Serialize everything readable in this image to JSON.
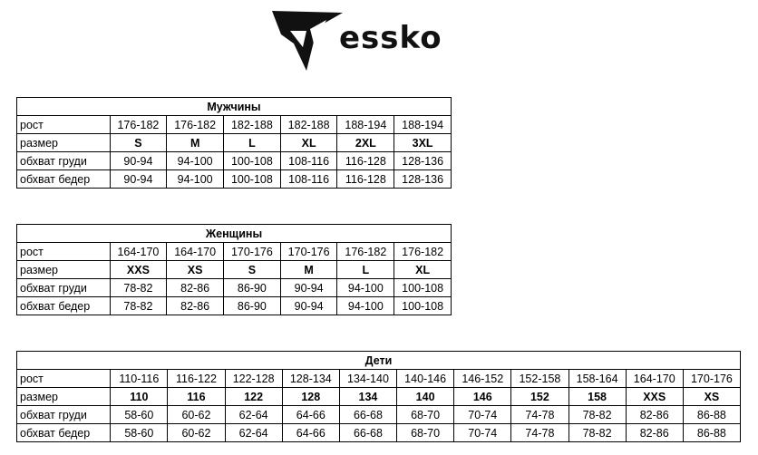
{
  "logo": {
    "brand": "essko",
    "icon": "essko-shield-logo-icon"
  },
  "men": {
    "title": "Мужчины",
    "rows": [
      {
        "label": "рост",
        "values": [
          "176-182",
          "176-182",
          "182-188",
          "182-188",
          "188-194",
          "188-194"
        ]
      },
      {
        "label": "размер",
        "values": [
          "S",
          "M",
          "L",
          "XL",
          "2XL",
          "3XL"
        ]
      },
      {
        "label": "обхват груди",
        "values": [
          "90-94",
          "94-100",
          "100-108",
          "108-116",
          "116-128",
          "128-136"
        ]
      },
      {
        "label": "обхват бедер",
        "values": [
          "90-94",
          "94-100",
          "100-108",
          "108-116",
          "116-128",
          "128-136"
        ]
      }
    ]
  },
  "women": {
    "title": "Женщины",
    "rows": [
      {
        "label": "рост",
        "values": [
          "164-170",
          "164-170",
          "170-176",
          "170-176",
          "176-182",
          "176-182"
        ]
      },
      {
        "label": "размер",
        "values": [
          "XXS",
          "XS",
          "S",
          "M",
          "L",
          "XL"
        ]
      },
      {
        "label": "обхват груди",
        "values": [
          "78-82",
          "82-86",
          "86-90",
          "90-94",
          "94-100",
          "100-108"
        ]
      },
      {
        "label": "обхват бедер",
        "values": [
          "78-82",
          "82-86",
          "86-90",
          "90-94",
          "94-100",
          "100-108"
        ]
      }
    ]
  },
  "kids": {
    "title": "Дети",
    "rows": [
      {
        "label": "рост",
        "values": [
          "110-116",
          "116-122",
          "122-128",
          "128-134",
          "134-140",
          "140-146",
          "146-152",
          "152-158",
          "158-164",
          "164-170",
          "170-176"
        ]
      },
      {
        "label": "размер",
        "values": [
          "110",
          "116",
          "122",
          "128",
          "134",
          "140",
          "146",
          "152",
          "158",
          "XXS",
          "XS"
        ]
      },
      {
        "label": "обхват груди",
        "values": [
          "58-60",
          "60-62",
          "62-64",
          "64-66",
          "66-68",
          "68-70",
          "70-74",
          "74-78",
          "78-82",
          "82-86",
          "86-88"
        ]
      },
      {
        "label": "обхват бедер",
        "values": [
          "58-60",
          "60-62",
          "62-64",
          "64-66",
          "66-68",
          "68-70",
          "70-74",
          "74-78",
          "78-82",
          "82-86",
          "86-88"
        ]
      }
    ]
  }
}
